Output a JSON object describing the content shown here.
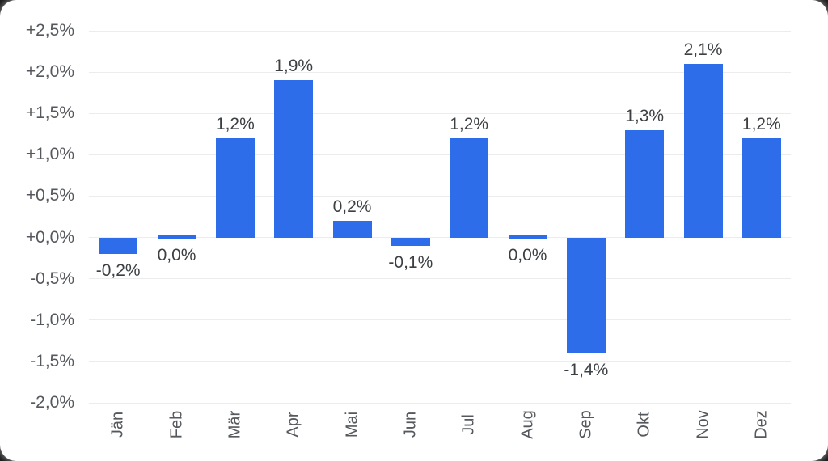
{
  "chart_data": {
    "type": "bar",
    "title": "",
    "categories": [
      "Jän",
      "Feb",
      "Mär",
      "Apr",
      "Mai",
      "Jun",
      "Jul",
      "Aug",
      "Sep",
      "Okt",
      "Nov",
      "Dez"
    ],
    "values": [
      -0.2,
      0.0,
      1.2,
      1.9,
      0.2,
      -0.1,
      1.2,
      0.0,
      -1.4,
      1.3,
      2.1,
      1.2
    ],
    "data_labels": [
      "-0,2%",
      "0,0%",
      "1,2%",
      "1,9%",
      "0,2%",
      "-0,1%",
      "1,2%",
      "0,0%",
      "-1,4%",
      "1,3%",
      "2,1%",
      "1,2%"
    ],
    "y_ticks": [
      "+2,5%",
      "+2,0%",
      "+1,5%",
      "+1,0%",
      "+0,5%",
      "+0,0%",
      "-0,5%",
      "-1,0%",
      "-1,5%",
      "-2,0%"
    ],
    "y_tick_values": [
      2.5,
      2.0,
      1.5,
      1.0,
      0.5,
      0.0,
      -0.5,
      -1.0,
      -1.5,
      -2.0
    ],
    "ylim": [
      -2.0,
      2.5
    ],
    "xlabel": "",
    "ylabel": "",
    "grid": true,
    "legend": "none",
    "x_label_rotation": -90,
    "bar_color": "#2d6de9",
    "grid_color": "#ececec",
    "axis_text_color": "#55585c",
    "data_label_color": "#3c4043",
    "card_background": "#ffffff"
  }
}
